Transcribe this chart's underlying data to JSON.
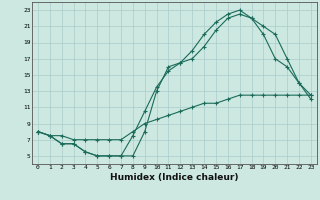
{
  "xlabel": "Humidex (Indice chaleur)",
  "background_color": "#cce8e0",
  "grid_color": "#aacccc",
  "line_color": "#1a6b5a",
  "xlim": [
    -0.5,
    23.5
  ],
  "ylim": [
    4,
    24
  ],
  "xticks": [
    0,
    1,
    2,
    3,
    4,
    5,
    6,
    7,
    8,
    9,
    10,
    11,
    12,
    13,
    14,
    15,
    16,
    17,
    18,
    19,
    20,
    21,
    22,
    23
  ],
  "yticks": [
    5,
    7,
    9,
    11,
    13,
    15,
    17,
    19,
    21,
    23
  ],
  "line1_x": [
    0,
    1,
    2,
    3,
    4,
    5,
    6,
    7,
    8,
    9,
    10,
    11,
    12,
    13,
    14,
    15,
    16,
    17,
    18,
    19,
    20,
    21,
    22,
    23
  ],
  "line1_y": [
    8,
    7.5,
    6.5,
    6.5,
    5.5,
    5,
    5,
    5,
    5,
    8,
    13,
    16,
    16.5,
    17,
    18.5,
    20.5,
    22,
    22.5,
    22,
    20,
    17,
    16,
    14,
    12
  ],
  "line2_x": [
    0,
    1,
    2,
    3,
    4,
    5,
    6,
    7,
    8,
    9,
    10,
    11,
    12,
    13,
    14,
    15,
    16,
    17,
    18,
    19,
    20,
    21,
    22,
    23
  ],
  "line2_y": [
    8,
    7.5,
    6.5,
    6.5,
    5.5,
    5,
    5,
    5,
    7.5,
    10.5,
    13.5,
    15.5,
    16.5,
    18,
    20,
    21.5,
    22.5,
    23,
    22,
    21,
    20,
    17,
    14,
    12.5
  ],
  "line3_x": [
    0,
    1,
    2,
    3,
    4,
    5,
    6,
    7,
    8,
    9,
    10,
    11,
    12,
    13,
    14,
    15,
    16,
    17,
    18,
    19,
    20,
    21,
    22,
    23
  ],
  "line3_y": [
    8,
    7.5,
    7.5,
    7,
    7,
    7,
    7,
    7,
    8,
    9,
    9.5,
    10,
    10.5,
    11,
    11.5,
    11.5,
    12,
    12.5,
    12.5,
    12.5,
    12.5,
    12.5,
    12.5,
    12.5
  ]
}
